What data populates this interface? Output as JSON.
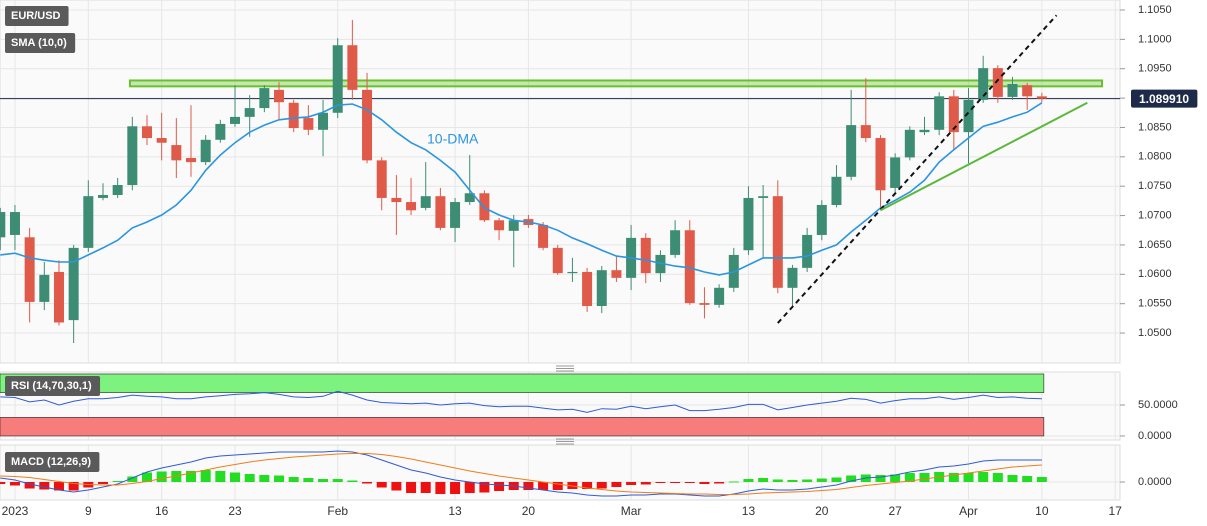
{
  "chart_data": [
    {
      "type": "candlestick",
      "title": "EUR/USD",
      "series": [
        {
          "name": "EUR/USD",
          "up_color": "#3d8c74",
          "down_color": "#e05a4a",
          "open": [
            1.0663,
            1.0667,
            1.0663,
            1.0553,
            1.0604,
            1.0522,
            1.0645,
            1.073,
            1.0735,
            1.0752,
            1.0852,
            1.0832,
            1.082,
            1.0798,
            1.0791,
            1.0829,
            1.0856,
            1.0868,
            1.0883,
            1.0914,
            1.0892,
            1.0866,
            1.0846,
            1.0875,
            1.099,
            1.0914,
            1.0794,
            1.073,
            1.0723,
            1.0713,
            1.0733,
            1.0679,
            1.0723,
            1.0738,
            1.0692,
            1.0674,
            1.0694,
            1.0684,
            1.0645,
            1.0602,
            1.0604,
            1.0546,
            1.0607,
            1.0594,
            1.0662,
            1.0602,
            1.0633,
            1.0675,
            1.0551,
            1.0548,
            1.0577,
            1.0641,
            1.073,
            1.0733,
            1.0577,
            1.0611,
            1.0667,
            1.0718,
            1.0766,
            1.0854,
            1.0832,
            1.0747,
            1.0799,
            1.0842,
            1.0846,
            1.0903,
            1.0842,
            1.0897,
            1.0951,
            1.0902,
            1.0922,
            1.0903
          ],
          "high": [
            1.0713,
            1.0718,
            1.0679,
            1.0621,
            1.0624,
            1.065,
            1.076,
            1.0755,
            1.0764,
            1.0868,
            1.0871,
            1.0875,
            1.0866,
            1.0888,
            1.0837,
            1.0863,
            1.0922,
            1.0905,
            1.0922,
            1.0927,
            1.0897,
            1.0888,
            1.0897,
            1.1002,
            1.1033,
            1.0943,
            1.0799,
            1.0769,
            1.0764,
            1.0791,
            1.0747,
            1.073,
            1.0803,
            1.0743,
            1.0696,
            1.0701,
            1.0701,
            1.0689,
            1.065,
            1.0628,
            1.0611,
            1.0614,
            1.0631,
            1.0684,
            1.067,
            1.0641,
            1.0692,
            1.0692,
            1.0578,
            1.0583,
            1.0645,
            1.075,
            1.0752,
            1.076,
            1.0616,
            1.0679,
            1.0726,
            1.0786,
            1.0914,
            1.0934,
            1.0837,
            1.0806,
            1.0852,
            1.0868,
            1.091,
            1.0914,
            1.0917,
            1.0972,
            1.0956,
            1.0936,
            1.0926,
            1.0909
          ],
          "low": [
            1.0641,
            1.0641,
            1.0518,
            1.0539,
            1.0513,
            1.0483,
            1.0638,
            1.0726,
            1.073,
            1.0743,
            1.082,
            1.0794,
            1.0764,
            1.0766,
            1.0786,
            1.0824,
            1.0851,
            1.0834,
            1.0876,
            1.0863,
            1.0842,
            1.0837,
            1.0801,
            1.0866,
            1.0897,
            1.0789,
            1.0709,
            1.0667,
            1.0701,
            1.0709,
            1.0675,
            1.0655,
            1.0718,
            1.0689,
            1.0658,
            1.0612,
            1.0679,
            1.0641,
            1.0599,
            1.0587,
            1.0536,
            1.0534,
            1.0587,
            1.0573,
            1.0585,
            1.0587,
            1.0628,
            1.0548,
            1.0525,
            1.0543,
            1.057,
            1.0633,
            1.0628,
            1.0568,
            1.0545,
            1.0604,
            1.0658,
            1.0714,
            1.076,
            1.0825,
            1.0709,
            1.074,
            1.0794,
            1.0837,
            1.0837,
            1.0812,
            1.0789,
            1.0892,
            1.0892,
            1.0897,
            1.088,
            1.0893
          ],
          "close": [
            1.0706,
            1.0706,
            1.0553,
            1.0599,
            1.0518,
            1.0645,
            1.0733,
            1.0735,
            1.0752,
            1.0852,
            1.0832,
            1.0824,
            1.0794,
            1.0791,
            1.0829,
            1.0856,
            1.0868,
            1.0883,
            1.0917,
            1.0893,
            1.0849,
            1.0846,
            1.0875,
            1.099,
            1.0914,
            1.0794,
            1.073,
            1.0723,
            1.0709,
            1.0733,
            1.0679,
            1.0723,
            1.0738,
            1.0692,
            1.0675,
            1.0692,
            1.0684,
            1.0645,
            1.0602,
            1.0604,
            1.0546,
            1.0607,
            1.0594,
            1.0662,
            1.0602,
            1.0633,
            1.0675,
            1.0551,
            1.0548,
            1.0577,
            1.0633,
            1.073,
            1.0733,
            1.0577,
            1.0611,
            1.0667,
            1.0718,
            1.0766,
            1.0854,
            1.0832,
            1.0743,
            1.0799,
            1.0846,
            1.0846,
            1.0903,
            1.0842,
            1.0897,
            1.0951,
            1.0902,
            1.0924,
            1.0903,
            1.0899
          ]
        },
        {
          "name": "SMA (10,0)",
          "color": "#2b95e0",
          "values": [
            1.0633,
            1.0636,
            1.0628,
            1.0624,
            1.0621,
            1.0621,
            1.0633,
            1.0645,
            1.0658,
            1.0679,
            1.0689,
            1.0701,
            1.0718,
            1.0743,
            1.0777,
            1.0803,
            1.0824,
            1.0842,
            1.0854,
            1.0863,
            1.0866,
            1.0868,
            1.0876,
            1.0888,
            1.089,
            1.088,
            1.0863,
            1.0842,
            1.0824,
            1.0812,
            1.0794,
            1.0774,
            1.0743,
            1.0713,
            1.0701,
            1.0692,
            1.0689,
            1.0684,
            1.0675,
            1.0662,
            1.0652,
            1.0641,
            1.0631,
            1.0628,
            1.0624,
            1.0619,
            1.0614,
            1.0611,
            1.0604,
            1.0599,
            1.0604,
            1.0616,
            1.0628,
            1.0628,
            1.0628,
            1.0631,
            1.0641,
            1.065,
            1.0672,
            1.0692,
            1.0713,
            1.0726,
            1.074,
            1.076,
            1.0791,
            1.0812,
            1.0832,
            1.0852,
            1.0859,
            1.0868,
            1.0876,
            1.0892
          ]
        }
      ],
      "annotation": "10-DMA",
      "zone": {
        "range": [
          1.092,
          1.093
        ],
        "x": [
          8.84,
          75.1
        ],
        "color": "#67c22a"
      },
      "trendlines": [
        {
          "x": [
            53,
            72
          ],
          "y": [
            1.0517,
            1.1041
          ],
          "color": "#111111",
          "dashed": true
        },
        {
          "x": [
            60,
            74.1
          ],
          "y": [
            1.0709,
            1.0892
          ],
          "color": "#5cb83a",
          "dashed": false
        }
      ],
      "last_price": {
        "value": 1.08991,
        "label": "1.089910"
      },
      "xlim": [
        0,
        76
      ],
      "xticks": [
        {
          "value": 1,
          "label": "2023"
        },
        {
          "value": 6,
          "label": "9"
        },
        {
          "value": 11,
          "label": "16"
        },
        {
          "value": 16,
          "label": "23"
        },
        {
          "value": 23,
          "label": "Feb"
        },
        {
          "value": 31,
          "label": "13"
        },
        {
          "value": 36,
          "label": "20"
        },
        {
          "value": 43,
          "label": "Mar"
        },
        {
          "value": 51,
          "label": "13"
        },
        {
          "value": 56,
          "label": "20"
        },
        {
          "value": 61,
          "label": "27"
        },
        {
          "value": 66,
          "label": "Apr"
        },
        {
          "value": 71,
          "label": "10"
        },
        {
          "value": 76,
          "label": "17"
        }
      ],
      "ylim": [
        1.0449,
        1.1067
      ],
      "yticks": [
        {
          "value": 1.05,
          "label": "1.0500"
        },
        {
          "value": 1.055,
          "label": "1.0550"
        },
        {
          "value": 1.06,
          "label": "1.0600"
        },
        {
          "value": 1.065,
          "label": "1.0650"
        },
        {
          "value": 1.07,
          "label": "1.0700"
        },
        {
          "value": 1.075,
          "label": "1.0750"
        },
        {
          "value": 1.08,
          "label": "1.0800"
        },
        {
          "value": 1.085,
          "label": "1.0850"
        },
        {
          "value": 1.09,
          "label": "1.0900"
        },
        {
          "value": 1.095,
          "label": "1.0950"
        },
        {
          "value": 1.1,
          "label": "1.1000"
        },
        {
          "value": 1.105,
          "label": "1.1050"
        }
      ],
      "grid": true
    },
    {
      "type": "rsi",
      "title": "RSI (14,70,30,1)",
      "series": [
        {
          "color": "#2f5bd6",
          "values": [
            63,
            62,
            55,
            58,
            50,
            56,
            60,
            60,
            62,
            66,
            64,
            63,
            60,
            60,
            63,
            65,
            67,
            68,
            70,
            67,
            63,
            62,
            64,
            72,
            66,
            58,
            54,
            53,
            52,
            53,
            50,
            52,
            53,
            49,
            47,
            48,
            48,
            45,
            42,
            43,
            38,
            44,
            43,
            48,
            44,
            47,
            50,
            41,
            41,
            43,
            46,
            51,
            51,
            42,
            46,
            50,
            53,
            56,
            61,
            59,
            53,
            57,
            60,
            60,
            63,
            59,
            62,
            66,
            62,
            63,
            61,
            60
          ]
        }
      ],
      "bands": [
        {
          "range": [
            70,
            100
          ],
          "color": "#7ef27e"
        },
        {
          "range": [
            0,
            30
          ],
          "color": "#f77c7c"
        }
      ],
      "ylim": [
        -6.5,
        103.2
      ],
      "yticks": [
        {
          "value": 50,
          "label": "50.0000"
        },
        {
          "value": 0,
          "label": "0.0000"
        }
      ]
    },
    {
      "type": "macd",
      "title": "MACD (12,26,9)",
      "series": [
        {
          "color": "#2f5bd6",
          "values": [
            0.0008,
            0.0004,
            -0.0004,
            -0.001,
            -0.0016,
            -0.002,
            -0.0016,
            -0.001,
            -0.0004,
            0.0008,
            0.002,
            0.0028,
            0.0034,
            0.004,
            0.0048,
            0.0052,
            0.0054,
            0.0056,
            0.0058,
            0.006,
            0.006,
            0.006,
            0.006,
            0.0062,
            0.006,
            0.0054,
            0.0044,
            0.0034,
            0.0024,
            0.0018,
            0.001,
            0.0004,
            0.0,
            -0.0004,
            -0.0006,
            -0.0008,
            -0.0012,
            -0.0016,
            -0.002,
            -0.0022,
            -0.0026,
            -0.0028,
            -0.0028,
            -0.0026,
            -0.0026,
            -0.0024,
            -0.0024,
            -0.0026,
            -0.0028,
            -0.0028,
            -0.0024,
            -0.0018,
            -0.0014,
            -0.0016,
            -0.0016,
            -0.0014,
            -0.001,
            -0.0006,
            0.0002,
            0.0008,
            0.001,
            0.0014,
            0.002,
            0.0024,
            0.003,
            0.0032,
            0.0036,
            0.0042,
            0.0044,
            0.0044,
            0.0044,
            0.0044
          ]
        },
        {
          "color": "#f07d1a",
          "values": [
            0.0012,
            0.0011,
            0.0009,
            0.0005,
            0.0001,
            -0.0003,
            -0.0005,
            -0.0006,
            -0.0006,
            -0.0003,
            0.0001,
            0.0007,
            0.0012,
            0.0018,
            0.0024,
            0.003,
            0.0035,
            0.004,
            0.0044,
            0.0047,
            0.005,
            0.0052,
            0.0054,
            0.0056,
            0.0057,
            0.0057,
            0.0055,
            0.0051,
            0.0046,
            0.004,
            0.0034,
            0.0028,
            0.0022,
            0.0017,
            0.0012,
            0.0008,
            0.0004,
            0.0,
            -0.0004,
            -0.0008,
            -0.0012,
            -0.0015,
            -0.0018,
            -0.002,
            -0.0021,
            -0.0022,
            -0.0023,
            -0.0024,
            -0.0024,
            -0.0025,
            -0.0025,
            -0.0024,
            -0.0022,
            -0.0021,
            -0.002,
            -0.0019,
            -0.0017,
            -0.0015,
            -0.0011,
            -0.0007,
            -0.0004,
            -0.0001,
            0.0002,
            0.0006,
            0.001,
            0.0014,
            0.0018,
            0.0022,
            0.0026,
            0.003,
            0.0032,
            0.0034
          ]
        }
      ],
      "histogram": {
        "up_color": "#22dd22",
        "down_color": "#ee1111",
        "values": [
          -0.0004,
          -0.0007,
          -0.0013,
          -0.0015,
          -0.0017,
          -0.0017,
          -0.0011,
          -0.0004,
          0.0002,
          0.0011,
          0.0019,
          0.0021,
          0.0022,
          0.0022,
          0.0024,
          0.0022,
          0.0019,
          0.0016,
          0.0014,
          0.0013,
          0.001,
          0.0008,
          0.0006,
          0.0006,
          0.0003,
          -0.0003,
          -0.0011,
          -0.0017,
          -0.0022,
          -0.0022,
          -0.0024,
          -0.0024,
          -0.0022,
          -0.0021,
          -0.0018,
          -0.0016,
          -0.0016,
          -0.0016,
          -0.0016,
          -0.0014,
          -0.0014,
          -0.0013,
          -0.001,
          -0.0006,
          -0.0005,
          -0.0002,
          -0.0001,
          -0.0002,
          -0.0004,
          -0.0003,
          0.0001,
          0.0006,
          0.0008,
          0.0005,
          0.0004,
          0.0005,
          0.0007,
          0.0009,
          0.0013,
          0.0015,
          0.0014,
          0.0015,
          0.0018,
          0.0018,
          0.002,
          0.0018,
          0.0018,
          0.002,
          0.0018,
          0.0014,
          0.0012,
          0.001
        ]
      },
      "ylim": [
        -0.0036,
        0.0074
      ],
      "yticks": [
        {
          "value": 0,
          "label": "0.0000"
        }
      ]
    }
  ]
}
